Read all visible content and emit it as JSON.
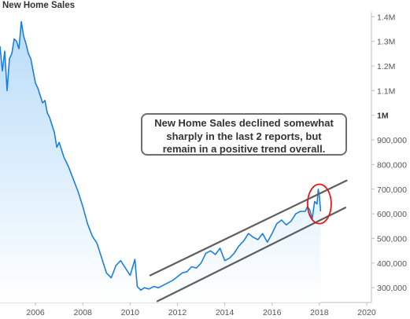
{
  "chart_data": {
    "type": "line",
    "title": "New Home Sales",
    "xlabel": "",
    "ylabel": "",
    "xlim": [
      2004.5,
      2020.2
    ],
    "ylim": [
      240000,
      1420000
    ],
    "x_ticks": [
      2006,
      2008,
      2010,
      2012,
      2014,
      2016,
      2018,
      2020
    ],
    "x_tick_labels": [
      "2006",
      "2008",
      "2010",
      "2012",
      "2014",
      "2016",
      "2018",
      "2020"
    ],
    "y_ticks": [
      300000,
      400000,
      500000,
      600000,
      700000,
      800000,
      900000,
      1000000,
      1100000,
      1200000,
      1300000,
      1400000
    ],
    "y_tick_labels": [
      "300,000",
      "400,000",
      "500,000",
      "600,000",
      "700,000",
      "800,000",
      "900,000",
      "1M",
      "1.1M",
      "1.2M",
      "1.3M",
      "1.4M"
    ],
    "y_tick_bold": "1M",
    "y_axis_side": "right",
    "grid": false,
    "series": [
      {
        "color": "#1a7fe0",
        "fill_gradient": [
          "#b8dcf8",
          "#ffffff"
        ],
        "x": [
          2004.5,
          2004.6,
          2004.7,
          2004.8,
          2004.9,
          2005.0,
          2005.1,
          2005.2,
          2005.3,
          2005.4,
          2005.5,
          2005.6,
          2005.7,
          2005.8,
          2005.9,
          2006.0,
          2006.1,
          2006.2,
          2006.3,
          2006.4,
          2006.5,
          2006.6,
          2006.7,
          2006.8,
          2006.9,
          2007.0,
          2007.2,
          2007.4,
          2007.6,
          2007.8,
          2008.0,
          2008.2,
          2008.4,
          2008.6,
          2008.8,
          2009.0,
          2009.2,
          2009.4,
          2009.6,
          2009.8,
          2010.0,
          2010.2,
          2010.3,
          2010.45,
          2010.6,
          2010.8,
          2011.0,
          2011.2,
          2011.4,
          2011.6,
          2011.8,
          2012.0,
          2012.2,
          2012.4,
          2012.6,
          2012.8,
          2013.0,
          2013.2,
          2013.4,
          2013.6,
          2013.8,
          2014.0,
          2014.2,
          2014.4,
          2014.6,
          2014.8,
          2015.0,
          2015.2,
          2015.4,
          2015.6,
          2015.8,
          2016.0,
          2016.2,
          2016.4,
          2016.6,
          2016.8,
          2017.0,
          2017.2,
          2017.4,
          2017.5,
          2017.6,
          2017.7,
          2017.8,
          2017.9,
          2017.95,
          2018.0,
          2018.05
        ],
        "values": [
          1280000,
          1180000,
          1260000,
          1100000,
          1230000,
          1250000,
          1310000,
          1300000,
          1270000,
          1380000,
          1320000,
          1290000,
          1250000,
          1230000,
          1180000,
          1130000,
          1110000,
          1080000,
          1050000,
          1060000,
          1010000,
          990000,
          960000,
          930000,
          870000,
          890000,
          830000,
          790000,
          740000,
          690000,
          630000,
          560000,
          510000,
          480000,
          420000,
          360000,
          340000,
          390000,
          410000,
          380000,
          350000,
          415000,
          305000,
          290000,
          300000,
          295000,
          305000,
          300000,
          310000,
          320000,
          330000,
          345000,
          360000,
          365000,
          385000,
          380000,
          400000,
          440000,
          450000,
          435000,
          460000,
          410000,
          420000,
          440000,
          470000,
          490000,
          520000,
          505000,
          495000,
          520000,
          485000,
          520000,
          560000,
          575000,
          555000,
          570000,
          600000,
          610000,
          610000,
          630000,
          615000,
          580000,
          650000,
          640000,
          700000,
          670000,
          610000
        ]
      }
    ],
    "trend_channel": {
      "color": "#5e5e5e",
      "upper": {
        "x": [
          2010.85,
          2019.15
        ],
        "y": [
          350000,
          735000
        ]
      },
      "lower": {
        "x": [
          2011.15,
          2019.1
        ],
        "y": [
          245000,
          625000
        ]
      }
    },
    "highlight_ellipse": {
      "color": "#e01818",
      "cx": 2018.0,
      "cy": 640000,
      "rx_years": 0.5,
      "ry_value": 80000
    },
    "annotation": {
      "lines": [
        "New Home Sales declined somewhat",
        "sharply in the last 2 reports, but",
        "remain in a positive trend overall."
      ]
    }
  }
}
